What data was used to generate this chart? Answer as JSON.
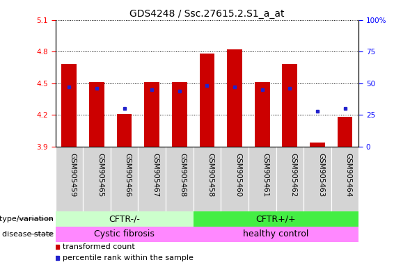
{
  "title": "GDS4248 / Ssc.27615.2.S1_a_at",
  "samples": [
    "GSM905459",
    "GSM905465",
    "GSM905466",
    "GSM905467",
    "GSM905468",
    "GSM905458",
    "GSM905460",
    "GSM905461",
    "GSM905462",
    "GSM905463",
    "GSM905464"
  ],
  "bar_tops": [
    4.68,
    4.51,
    4.21,
    4.51,
    4.51,
    4.78,
    4.82,
    4.51,
    4.68,
    3.94,
    4.18
  ],
  "bar_bottom": 3.9,
  "percentile_ranks": [
    47,
    46,
    30,
    45,
    44,
    48,
    47,
    45,
    46,
    28,
    30
  ],
  "ylim": [
    3.9,
    5.1
  ],
  "yticks_left": [
    3.9,
    4.2,
    4.5,
    4.8,
    5.1
  ],
  "yticks_right_vals": [
    0,
    25,
    50,
    75,
    100
  ],
  "yticks_right_labels": [
    "0",
    "25",
    "50",
    "75",
    "100%"
  ],
  "bar_color": "#cc0000",
  "dot_color": "#2222cc",
  "group1_count": 5,
  "group2_count": 6,
  "genotype_label1": "CFTR-/-",
  "genotype_label2": "CFTR+/+",
  "disease_label1": "Cystic fibrosis",
  "disease_label2": "healthy control",
  "genotype_color1": "#ccffcc",
  "genotype_color2": "#44ee44",
  "disease_color": "#ff88ff",
  "genotype_row_label": "genotype/variation",
  "disease_row_label": "disease state",
  "legend_bar_label": "transformed count",
  "legend_dot_label": "percentile rank within the sample",
  "title_fontsize": 10,
  "tick_fontsize": 7.5,
  "annotation_fontsize": 9,
  "bar_width": 0.55
}
